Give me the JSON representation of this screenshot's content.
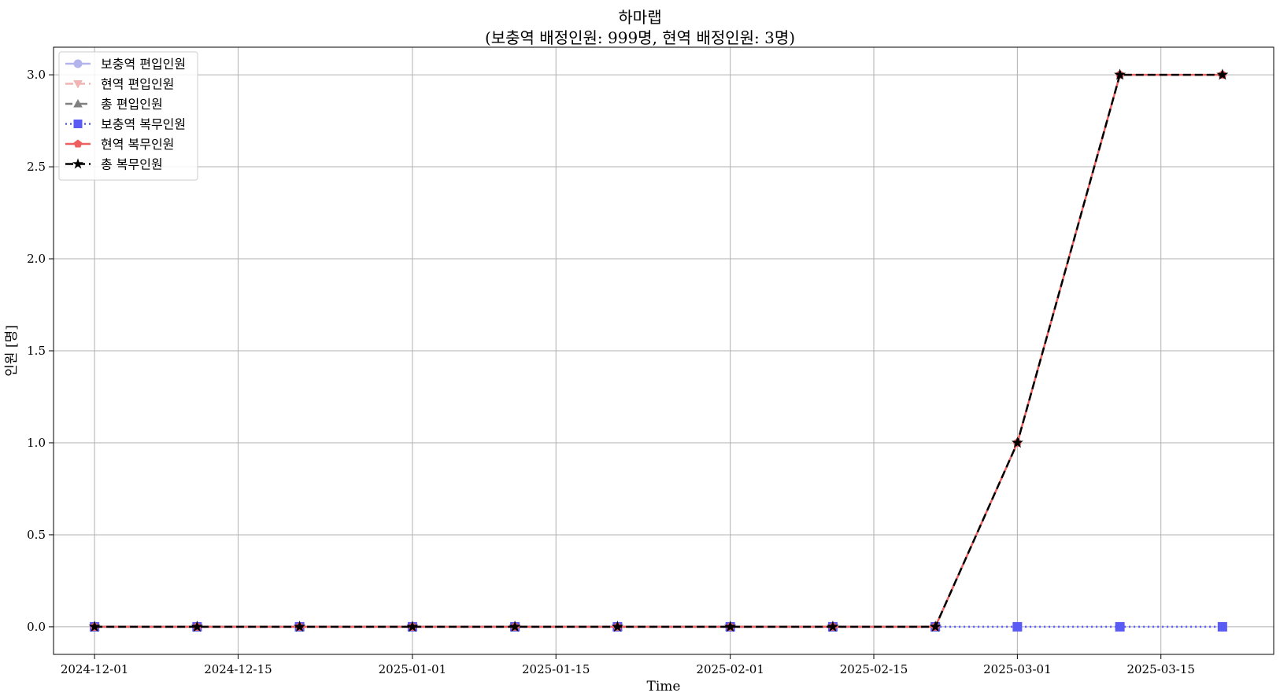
{
  "chart_data": {
    "type": "line",
    "title": "하마랩",
    "subtitle": "(보충역 배정인원: 999명, 현역 배정인원: 3명)",
    "xlabel": "Time",
    "ylabel": "인원 [명]",
    "ylim": [
      -0.15,
      3.15
    ],
    "xlim": [
      "2024-11-27",
      "2025-03-26"
    ],
    "grid": true,
    "legend_position": "top-left",
    "x": [
      "2024-12-01",
      "2024-12-11",
      "2024-12-21",
      "2025-01-01",
      "2025-01-11",
      "2025-01-21",
      "2025-02-01",
      "2025-02-11",
      "2025-02-21",
      "2025-03-01",
      "2025-03-11",
      "2025-03-21"
    ],
    "x_ticks": [
      "2024-12-01",
      "2024-12-15",
      "2025-01-01",
      "2025-01-15",
      "2025-02-01",
      "2025-02-15",
      "2025-03-01",
      "2025-03-15"
    ],
    "y_ticks": [
      0.0,
      0.5,
      1.0,
      1.5,
      2.0,
      2.5,
      3.0
    ],
    "y_tick_labels": [
      "0.0",
      "0.5",
      "1.0",
      "1.5",
      "2.0",
      "2.5",
      "3.0"
    ],
    "series": [
      {
        "name": "보충역 편입인원",
        "color": "#b4b4ec",
        "dash": "solid",
        "marker": "circle",
        "values": [
          0,
          0,
          0,
          0,
          0,
          0,
          0,
          0,
          0,
          null,
          null,
          null
        ]
      },
      {
        "name": "현역 편입인원",
        "color": "#f0b4b4",
        "dash": "dashed",
        "marker": "triangle-down",
        "values": [
          0,
          0,
          0,
          0,
          0,
          0,
          0,
          0,
          0,
          null,
          null,
          null
        ]
      },
      {
        "name": "총 편입인원",
        "color": "#808080",
        "dash": "dashdot",
        "marker": "triangle-up",
        "values": [
          0,
          0,
          0,
          0,
          0,
          0,
          0,
          0,
          0,
          null,
          null,
          null
        ]
      },
      {
        "name": "보충역 복무인원",
        "color": "#5a5af5",
        "dash": "dotted",
        "marker": "square",
        "values": [
          0,
          0,
          0,
          0,
          0,
          0,
          0,
          0,
          0,
          0,
          0,
          0
        ]
      },
      {
        "name": "현역 복무인원",
        "color": "#ee6060",
        "dash": "solid",
        "marker": "pentagon",
        "values": [
          0,
          0,
          0,
          0,
          0,
          0,
          0,
          0,
          0,
          1,
          3,
          3
        ]
      },
      {
        "name": "총 복무인원",
        "color": "#000000",
        "dash": "dashed",
        "marker": "star",
        "values": [
          0,
          0,
          0,
          0,
          0,
          0,
          0,
          0,
          0,
          1,
          3,
          3
        ]
      }
    ]
  }
}
